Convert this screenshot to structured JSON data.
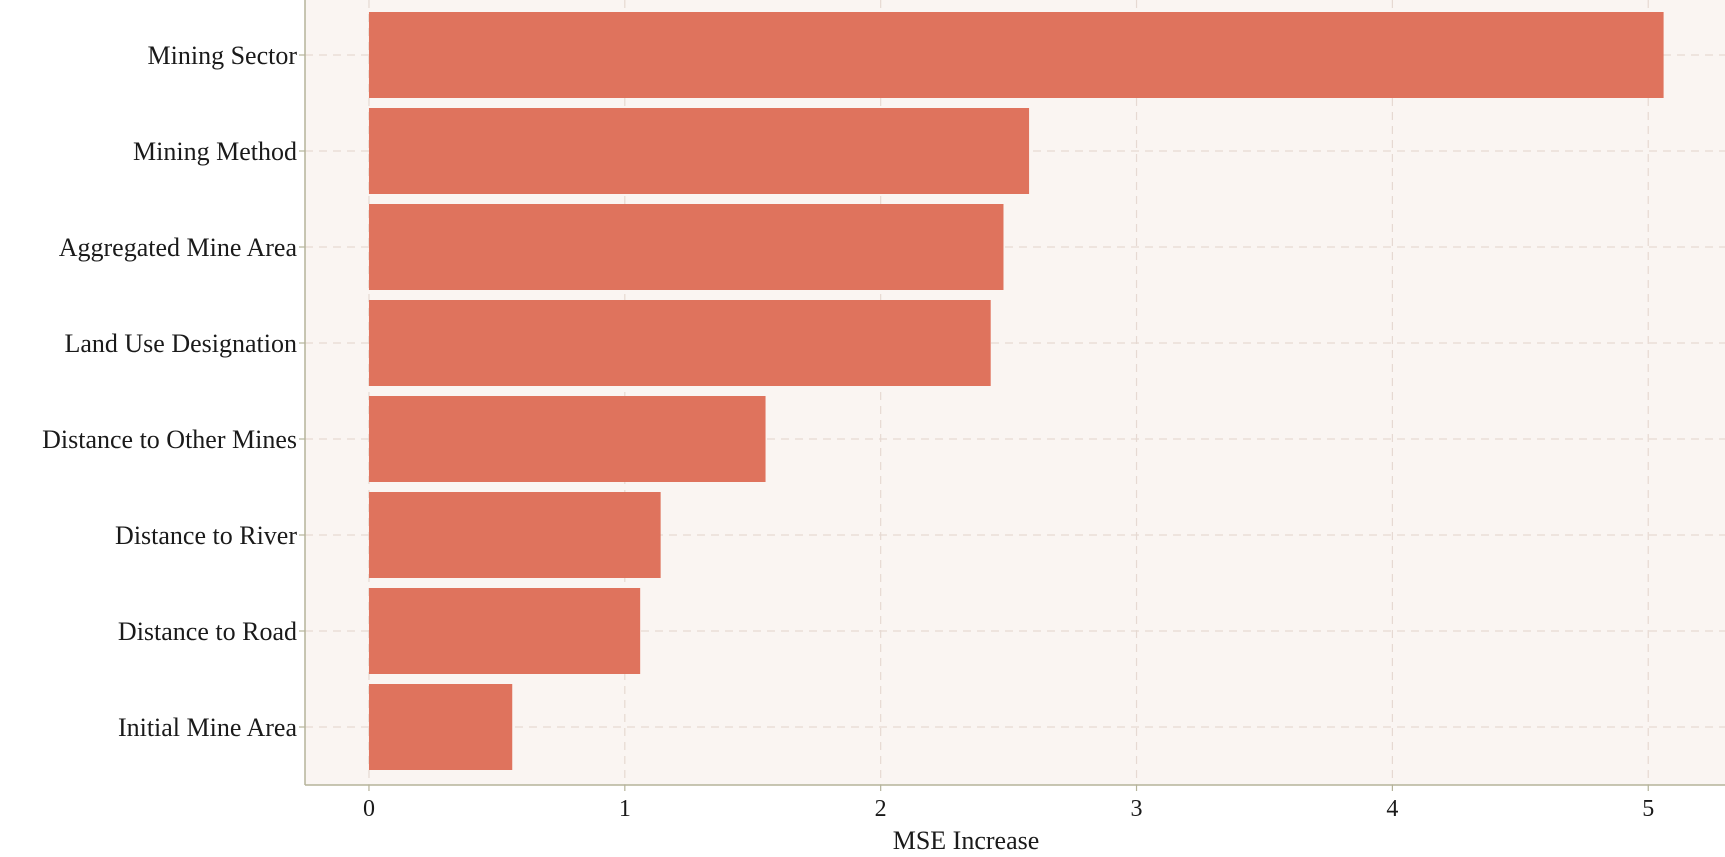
{
  "chart_data": {
    "type": "bar",
    "orientation": "horizontal",
    "title": "",
    "xlabel": "MSE Increase",
    "ylabel": "",
    "categories": [
      "Mining Sector",
      "Mining Method",
      "Aggregated Mine Area",
      "Land Use Designation",
      "Distance to Other Mines",
      "Distance to River",
      "Distance to Road",
      "Initial Mine Area"
    ],
    "values": [
      5.06,
      2.58,
      2.48,
      2.43,
      1.55,
      1.14,
      1.06,
      0.56
    ],
    "xlim": [
      -0.25,
      5.3
    ],
    "xticks": [
      0,
      1,
      2,
      3,
      4,
      5
    ],
    "xtick_labels": [
      "0",
      "1",
      "2",
      "3",
      "4",
      "5"
    ],
    "grid": true,
    "legend": "none",
    "colors": {
      "bar": "#df735d",
      "plot_background": "#faf5f2",
      "grid": "#e6d9d2",
      "axis": "#b5b39a"
    }
  }
}
